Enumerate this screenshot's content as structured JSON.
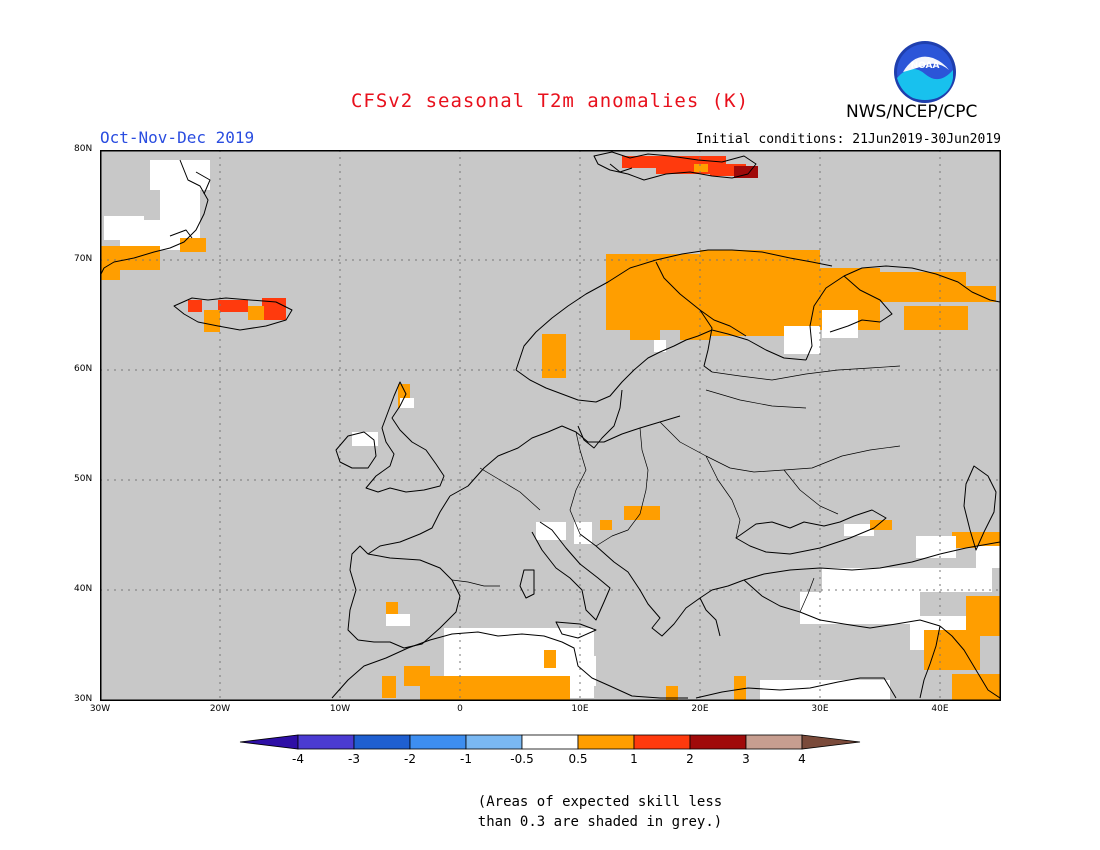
{
  "header": {
    "title": "CFSv2 seasonal T2m anomalies (K)",
    "period": "Oct-Nov-Dec 2019",
    "initial_conditions": "Initial conditions: 21Jun2019-30Jun2019",
    "agency": "NWS/NCEP/CPC",
    "logo_text": "NOAA"
  },
  "map": {
    "region": "Europe",
    "lat_labels": [
      "80N",
      "70N",
      "60N",
      "50N",
      "40N",
      "30N"
    ],
    "lon_labels": [
      "30W",
      "20W",
      "10W",
      "0",
      "10E",
      "20E",
      "30E",
      "40E"
    ],
    "background_color": "#c8c8c8",
    "coast_color": "#000000"
  },
  "colorbar": {
    "tick_labels": [
      "-4",
      "-3",
      "-2",
      "-1",
      "-0.5",
      "0.5",
      "1",
      "2",
      "3",
      "4"
    ],
    "colors": [
      "#2e0fa6",
      "#4b3bd2",
      "#1f5fd0",
      "#3d8ef0",
      "#7ab8f2",
      "#ffffff",
      "#ff9e00",
      "#ff3a0d",
      "#a00a0a",
      "#c79e90",
      "#7a4a3a"
    ]
  },
  "anomaly_color_key": {
    "white": "#ffffff",
    "orange": "#ff9e00",
    "red": "#ff3a0d",
    "darkred": "#a00a0a"
  },
  "note": {
    "line1": "(Areas of expected skill less",
    "line2": "than 0.3 are shaded in grey.)"
  }
}
